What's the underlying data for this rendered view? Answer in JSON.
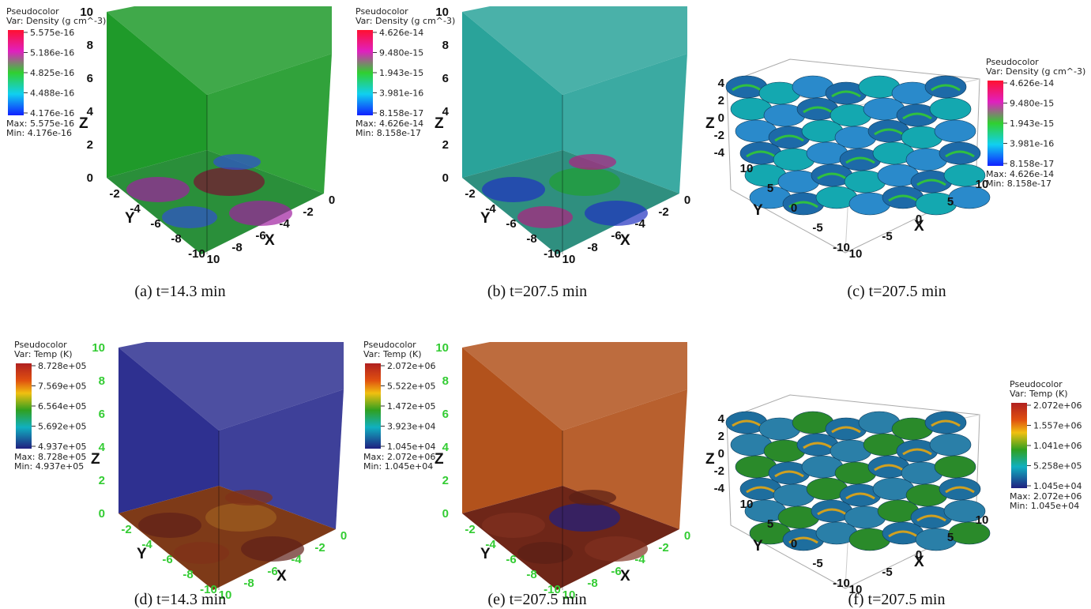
{
  "panels": [
    {
      "legend": {
        "title": "Pseudocolor",
        "var": "Var: Density (g cm^-3)",
        "ticks": [
          "5.575e-16",
          "5.186e-16",
          "4.825e-16",
          "4.488e-16",
          "4.176e-16"
        ],
        "max": "Max:  5.575e-16",
        "min": "Min:  4.176e-16"
      },
      "axes": {
        "z_ticks": [
          "0",
          "2",
          "4",
          "6",
          "8",
          "10"
        ],
        "z_label": "Z",
        "y_ticks": [
          "-2",
          "-4",
          "-6",
          "-8",
          "-10"
        ],
        "y_label": "Y",
        "x_ticks": [
          "0",
          "-2",
          "-4",
          "-6",
          "-8",
          "10"
        ],
        "x_label": "X"
      },
      "caption": "(a) t=14.3 min"
    },
    {
      "legend": {
        "title": "Pseudocolor",
        "var": "Var: Density (g cm^-3)",
        "ticks": [
          "4.626e-14",
          "9.480e-15",
          "1.943e-15",
          "3.981e-16",
          "8.158e-17"
        ],
        "max": "Max:  4.626e-14",
        "min": "Min:  8.158e-17"
      },
      "axes": {
        "z_ticks": [
          "0",
          "2",
          "4",
          "6",
          "8",
          "10"
        ],
        "z_label": "Z",
        "y_ticks": [
          "-2",
          "-4",
          "-6",
          "-8",
          "-10"
        ],
        "y_label": "Y",
        "x_ticks": [
          "0",
          "-2",
          "-4",
          "-6",
          "-8",
          "10"
        ],
        "x_label": "X"
      },
      "caption": "(b) t=207.5 min"
    },
    {
      "legend": {
        "title": "Pseudocolor",
        "var": "Var: Density (g cm^-3)",
        "ticks": [
          "4.626e-14",
          "9.480e-15",
          "1.943e-15",
          "3.981e-16",
          "8.158e-17"
        ],
        "max": "Max:  4.626e-14",
        "min": "Min:  8.158e-17"
      },
      "axes": {
        "z_ticks": [
          "-4",
          "-2",
          "0",
          "2",
          "4"
        ],
        "z_label": "Z",
        "y_ticks": [
          "10",
          "5",
          "0",
          "-5",
          "-10"
        ],
        "y_label": "Y",
        "x_ticks": [
          "10",
          "5",
          "0",
          "-5",
          "10"
        ],
        "x_label": "X"
      },
      "caption": "(c) t=207.5 min"
    },
    {
      "legend": {
        "title": "Pseudocolor",
        "var": "Var: Temp (K)",
        "ticks": [
          "8.728e+05",
          "7.569e+05",
          "6.564e+05",
          "5.692e+05",
          "4.937e+05"
        ],
        "max": "Max:  8.728e+05",
        "min": "Min:  4.937e+05"
      },
      "axes": {
        "z_ticks": [
          "0",
          "2",
          "4",
          "6",
          "8",
          "10"
        ],
        "z_label": "Z",
        "y_ticks": [
          "-2",
          "-4",
          "-6",
          "-8",
          "-10"
        ],
        "y_label": "Y",
        "x_ticks": [
          "0",
          "-2",
          "-4",
          "-6",
          "-8",
          "10"
        ],
        "x_label": "X"
      },
      "caption": "(d) t=14.3 min"
    },
    {
      "legend": {
        "title": "Pseudocolor",
        "var": "Var: Temp (K)",
        "ticks": [
          "2.072e+06",
          "5.522e+05",
          "1.472e+05",
          "3.923e+04",
          "1.045e+04"
        ],
        "max": "Max:  2.072e+06",
        "min": "Min:  1.045e+04"
      },
      "axes": {
        "z_ticks": [
          "0",
          "2",
          "4",
          "6",
          "8",
          "10"
        ],
        "z_label": "Z",
        "y_ticks": [
          "-2",
          "-4",
          "-6",
          "-8",
          "-10"
        ],
        "y_label": "Y",
        "x_ticks": [
          "0",
          "-2",
          "-4",
          "-6",
          "-8",
          "10"
        ],
        "x_label": "X"
      },
      "caption": "(e) t=207.5 min"
    },
    {
      "legend": {
        "title": "Pseudocolor",
        "var": "Var: Temp (K)",
        "ticks": [
          "2.072e+06",
          "1.557e+06",
          "1.041e+06",
          "5.258e+05",
          "1.045e+04"
        ],
        "max": "Max:  2.072e+06",
        "min": "Min:  1.045e+04"
      },
      "axes": {
        "z_ticks": [
          "-4",
          "-2",
          "0",
          "2",
          "4"
        ],
        "z_label": "Z",
        "y_ticks": [
          "10",
          "5",
          "0",
          "-5",
          "-10"
        ],
        "y_label": "Y",
        "x_ticks": [
          "10",
          "5",
          "0",
          "-5",
          "10"
        ],
        "x_label": "X"
      },
      "caption": "(f) t=207.5 min"
    }
  ]
}
